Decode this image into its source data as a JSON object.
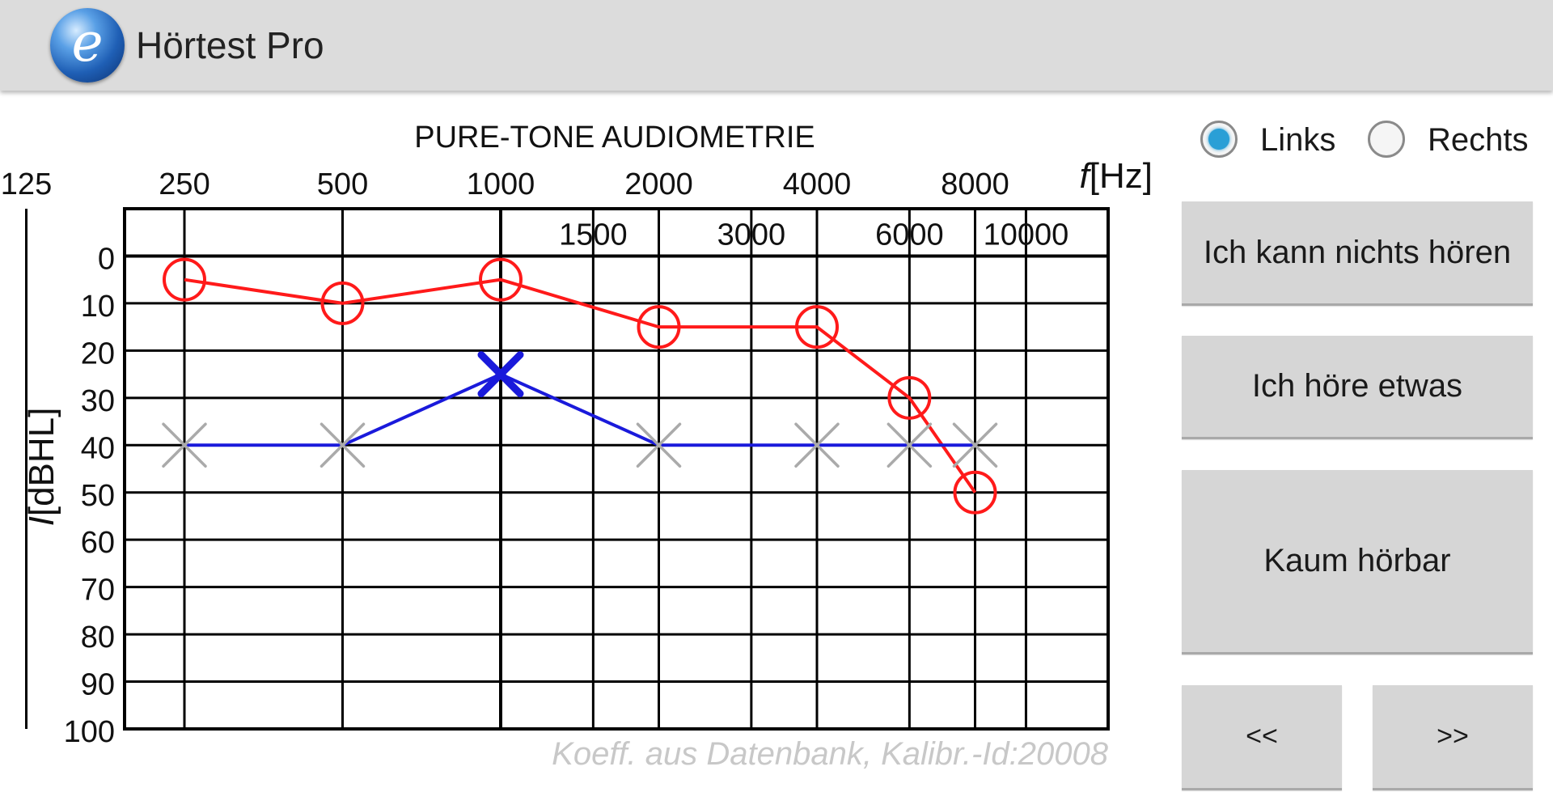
{
  "app": {
    "title": "Hörtest Pro",
    "icon": "e-logo-icon"
  },
  "chart_data": {
    "type": "line",
    "title": "PURE-TONE AUDIOMETRIE",
    "xlabel": "[Hz]",
    "xlabel_symbol": "f",
    "ylabel": "[dBHL]",
    "ylabel_symbol": "I",
    "x_scale": "log",
    "x_ticks_top": [
      125,
      250,
      500,
      1000,
      2000,
      4000,
      8000
    ],
    "x_ticks_inner": [
      1500,
      3000,
      6000,
      10000
    ],
    "y_ticks": [
      0,
      10,
      20,
      30,
      40,
      50,
      60,
      70,
      80,
      90,
      100
    ],
    "ylim": [
      100,
      -10
    ],
    "y_inverted": true,
    "grid": true,
    "footnote": "Koeff. aus Datenbank, Kalibr.-Id:20008",
    "series": [
      {
        "marker": "circle",
        "color": "#ff1a1a",
        "points": [
          {
            "x": 250,
            "y": 5
          },
          {
            "x": 500,
            "y": 10
          },
          {
            "x": 1000,
            "y": 5
          },
          {
            "x": 2000,
            "y": 15
          },
          {
            "x": 4000,
            "y": 15
          },
          {
            "x": 6000,
            "y": 30
          },
          {
            "x": 8000,
            "y": 50
          }
        ]
      },
      {
        "marker": "cross",
        "color": "#1a1adb",
        "active_index": 2,
        "pending_color": "#aaaaaa",
        "points": [
          {
            "x": 250,
            "y": 40
          },
          {
            "x": 500,
            "y": 40
          },
          {
            "x": 1000,
            "y": 25
          },
          {
            "x": 2000,
            "y": 40
          },
          {
            "x": 4000,
            "y": 40
          },
          {
            "x": 6000,
            "y": 40
          },
          {
            "x": 8000,
            "y": 40
          }
        ]
      }
    ]
  },
  "ear_select": {
    "options": [
      {
        "label": "Links",
        "checked": true
      },
      {
        "label": "Rechts",
        "checked": false
      }
    ]
  },
  "buttons": {
    "cant_hear": "Ich kann nichts hören",
    "hear_something": "Ich höre etwas",
    "barely_audible": "Kaum hörbar",
    "prev": "<<",
    "next": ">>"
  }
}
